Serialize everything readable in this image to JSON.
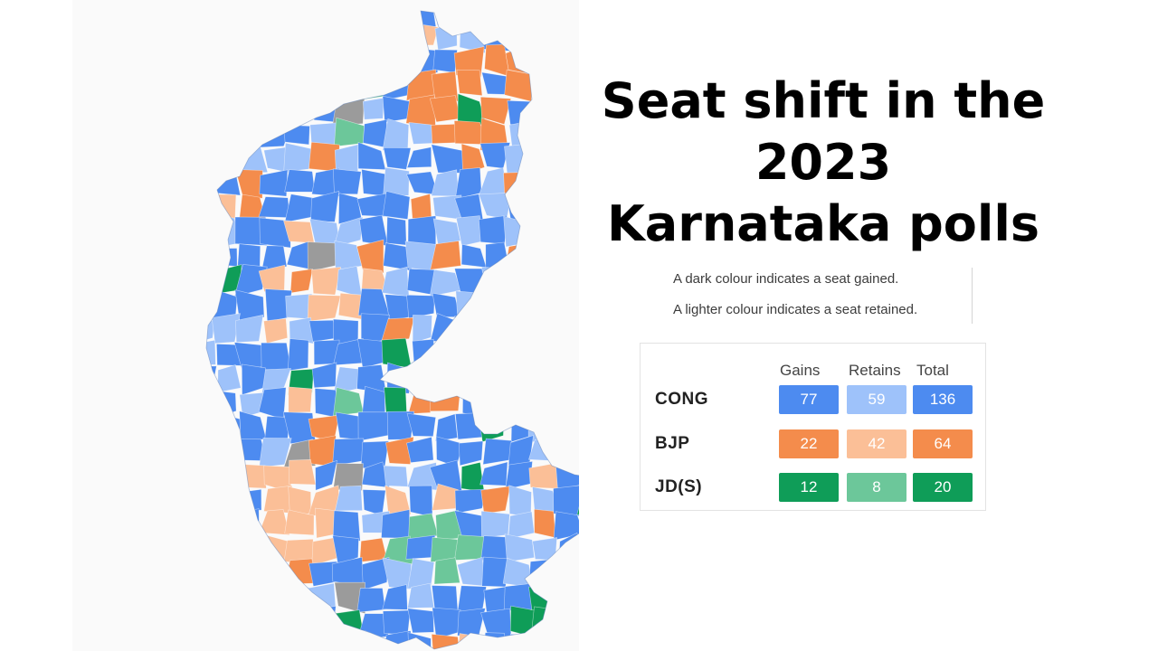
{
  "title": {
    "line1": "Seat shift in the 2023",
    "line2": "Karnataka polls"
  },
  "notes": [
    "A dark colour indicates a seat gained.",
    "A lighter colour indicates a seat retained."
  ],
  "legend": {
    "columns": [
      "Gains",
      "Retains",
      "Total"
    ],
    "rows": [
      {
        "party": "CONG",
        "gains": "77",
        "retains": "59",
        "total": "136"
      },
      {
        "party": "BJP",
        "gains": "22",
        "retains": "42",
        "total": "64"
      },
      {
        "party": "JD(S)",
        "gains": "12",
        "retains": "8",
        "total": "20"
      }
    ]
  },
  "colors": {
    "cong_gain": "#4d8bf0",
    "cong_retain": "#9ec2fa",
    "bjp_gain": "#f48c4c",
    "bjp_retain": "#fbbf97",
    "jds_gain": "#0f9d58",
    "jds_retain": "#6cc79a",
    "other": "#9b9b9b"
  }
}
